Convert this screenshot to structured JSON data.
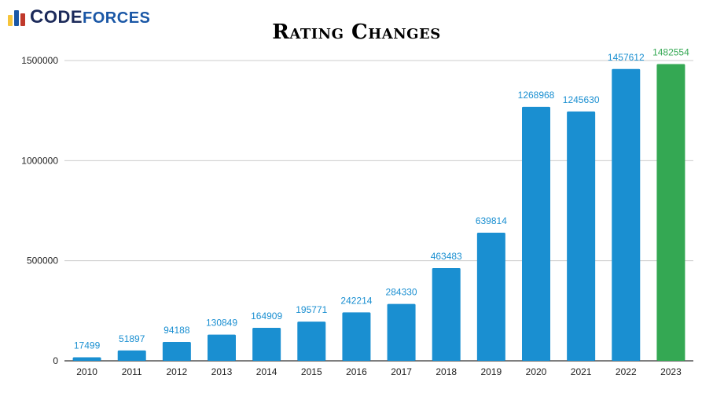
{
  "brand": {
    "logo_first": "C",
    "logo_rest": "ODE",
    "logo_accent": "FORCES",
    "logo_icon": "bar-chart-logo-icon",
    "logo_colors": [
      "#f6c43a",
      "#1a57a6",
      "#c0392b"
    ]
  },
  "chart_data": {
    "type": "bar",
    "title": "Rating Changes",
    "xlabel": "",
    "ylabel": "",
    "categories": [
      "2010",
      "2011",
      "2012",
      "2013",
      "2014",
      "2015",
      "2016",
      "2017",
      "2018",
      "2019",
      "2020",
      "2021",
      "2022",
      "2023"
    ],
    "series": [
      {
        "values": [
          17499,
          51897,
          94188,
          130849,
          164909,
          195771,
          242214,
          284330,
          463483,
          639814,
          1268968,
          1245630,
          1457612,
          1482554
        ]
      }
    ],
    "data_labels": [
      "17499",
      "51897",
      "94188",
      "130849",
      "164909",
      "195771",
      "242214",
      "284330",
      "463483",
      "639814",
      "1268968",
      "1245630",
      "1457612",
      "1482554"
    ],
    "ylim": [
      0,
      1500000
    ],
    "yticks": [
      0,
      500000,
      1000000,
      1500000
    ],
    "ytick_labels": [
      "0",
      "500000",
      "1000000",
      "1500000"
    ],
    "grid": true,
    "legend": "none",
    "colors": {
      "default": "#1a8fd1",
      "highlight": "#34a853"
    },
    "highlight_index": 13
  }
}
